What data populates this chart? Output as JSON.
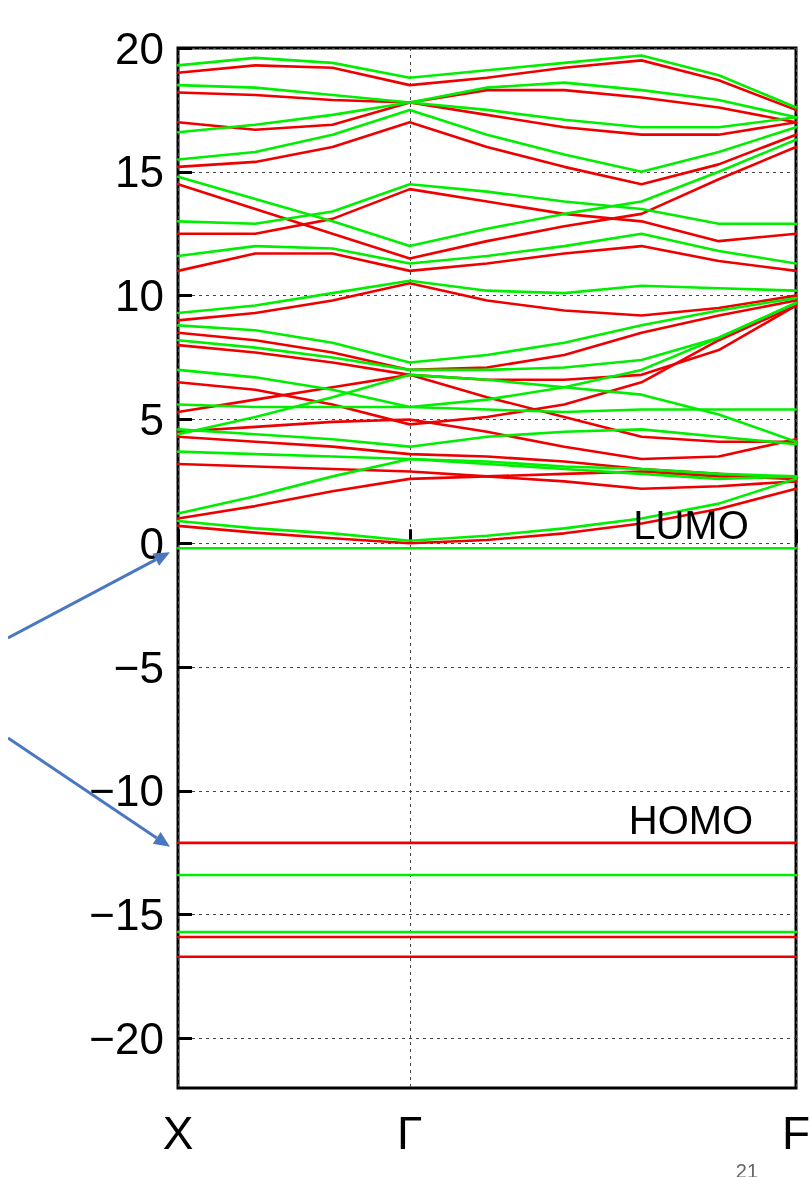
{
  "chart_data": {
    "type": "line",
    "marker": "none",
    "line_style": "solid",
    "grid": true,
    "categories": [
      "X",
      null,
      null,
      "Γ",
      null,
      null,
      null,
      null,
      "F"
    ],
    "ylim": [
      -22,
      20
    ],
    "yticks": [
      -20,
      -15,
      -10,
      -5,
      0,
      5,
      10,
      15,
      20
    ],
    "annotations": [
      {
        "text": "LUMO",
        "y": -0.2
      },
      {
        "text": "HOMO",
        "y": -12.1
      },
      "21"
    ],
    "series": [
      {
        "color": "#ee0000",
        "values": [
          0.7,
          0.43,
          0.2,
          0.0,
          0.13,
          0.4,
          0.8,
          1.38,
          2.2
        ]
      },
      {
        "color": "#ee0000",
        "values": [
          1.0,
          1.5,
          2.1,
          2.6,
          2.7,
          2.8,
          2.9,
          2.7,
          2.6
        ]
      },
      {
        "color": "#ee0000",
        "values": [
          3.2,
          3.1,
          3.0,
          2.9,
          2.7,
          2.5,
          2.2,
          2.3,
          2.5
        ]
      },
      {
        "color": "#ee0000",
        "values": [
          4.3,
          4.1,
          3.9,
          3.6,
          3.5,
          3.3,
          3.0,
          2.8,
          2.6
        ]
      },
      {
        "color": "#ee0000",
        "values": [
          4.5,
          4.7,
          4.9,
          5.0,
          4.5,
          3.9,
          3.4,
          3.5,
          4.2
        ]
      },
      {
        "color": "#ee0000",
        "values": [
          5.3,
          5.8,
          6.3,
          6.8,
          5.9,
          5.1,
          4.3,
          4.1,
          4.1
        ]
      },
      {
        "color": "#ee0000",
        "values": [
          6.5,
          6.2,
          5.6,
          4.8,
          5.1,
          5.6,
          6.5,
          8.2,
          9.6
        ]
      },
      {
        "color": "#ee0000",
        "values": [
          8.0,
          7.7,
          7.3,
          6.8,
          6.6,
          6.6,
          6.8,
          7.8,
          9.6
        ]
      },
      {
        "color": "#ee0000",
        "values": [
          8.5,
          8.2,
          7.7,
          7.0,
          7.1,
          7.6,
          8.5,
          9.2,
          9.8
        ]
      },
      {
        "color": "#ee0000",
        "values": [
          9.0,
          9.3,
          9.8,
          10.5,
          9.8,
          9.4,
          9.2,
          9.5,
          10.0
        ]
      },
      {
        "color": "#ee0000",
        "values": [
          11.0,
          11.7,
          11.7,
          11.0,
          11.3,
          11.7,
          12.0,
          11.4,
          11.0
        ]
      },
      {
        "color": "#ee0000",
        "values": [
          12.5,
          12.5,
          13.1,
          14.3,
          13.8,
          13.3,
          13.0,
          12.2,
          12.5
        ]
      },
      {
        "color": "#ee0000",
        "values": [
          14.5,
          13.5,
          12.5,
          11.5,
          12.2,
          12.8,
          13.3,
          14.7,
          16.0
        ]
      },
      {
        "color": "#ee0000",
        "values": [
          15.2,
          15.4,
          16.0,
          17.0,
          16.0,
          15.2,
          14.5,
          15.3,
          16.5
        ]
      },
      {
        "color": "#ee0000",
        "values": [
          17.0,
          16.7,
          16.9,
          17.8,
          17.3,
          16.8,
          16.5,
          16.5,
          17.0
        ]
      },
      {
        "color": "#ee0000",
        "values": [
          18.2,
          18.1,
          17.9,
          17.8,
          18.3,
          18.3,
          18.0,
          17.6,
          17.0
        ]
      },
      {
        "color": "#ee0000",
        "values": [
          19.0,
          19.3,
          19.2,
          18.5,
          18.8,
          19.2,
          19.5,
          18.7,
          17.5
        ]
      },
      {
        "color": "#ee0000",
        "values": [
          -12.1,
          -12.1,
          -12.1,
          -12.1,
          -12.1,
          -12.1,
          -12.1,
          -12.1,
          -12.1
        ]
      },
      {
        "color": "#ee0000",
        "values": [
          -15.9,
          -15.9,
          -15.9,
          -15.9,
          -15.9,
          -15.9,
          -15.9,
          -15.9,
          -15.9
        ]
      },
      {
        "color": "#ee0000",
        "values": [
          -16.7,
          -16.7,
          -16.7,
          -16.7,
          -16.7,
          -16.7,
          -16.7,
          -16.7,
          -16.7
        ]
      },
      {
        "color": "#00ee00",
        "values": [
          0.9,
          0.6,
          0.4,
          0.1,
          0.3,
          0.6,
          1.0,
          1.6,
          2.6
        ]
      },
      {
        "color": "#00ee00",
        "values": [
          1.2,
          1.9,
          2.7,
          3.4,
          3.3,
          3.1,
          3.0,
          2.8,
          2.7
        ]
      },
      {
        "color": "#00ee00",
        "values": [
          3.7,
          3.6,
          3.5,
          3.4,
          3.2,
          3.0,
          2.8,
          2.6,
          2.7
        ]
      },
      {
        "color": "#00ee00",
        "values": [
          4.6,
          4.4,
          4.2,
          3.9,
          4.3,
          4.5,
          4.6,
          4.3,
          4.0
        ]
      },
      {
        "color": "#00ee00",
        "values": [
          5.6,
          5.5,
          5.5,
          5.5,
          5.4,
          5.3,
          5.4,
          5.4,
          5.4
        ]
      },
      {
        "color": "#00ee00",
        "values": [
          4.4,
          5.1,
          5.9,
          6.8,
          6.6,
          6.3,
          6.0,
          5.2,
          4.1
        ]
      },
      {
        "color": "#00ee00",
        "values": [
          7.0,
          6.7,
          6.2,
          5.5,
          5.8,
          6.3,
          7.0,
          8.3,
          9.7
        ]
      },
      {
        "color": "#00ee00",
        "values": [
          8.2,
          7.9,
          7.5,
          7.0,
          7.0,
          7.1,
          7.4,
          8.3,
          9.7
        ]
      },
      {
        "color": "#00ee00",
        "values": [
          8.8,
          8.6,
          8.1,
          7.3,
          7.6,
          8.1,
          8.8,
          9.4,
          9.9
        ]
      },
      {
        "color": "#00ee00",
        "values": [
          9.3,
          9.6,
          10.1,
          10.6,
          10.2,
          10.1,
          10.4,
          10.3,
          10.2
        ]
      },
      {
        "color": "#00ee00",
        "values": [
          11.6,
          12.0,
          11.9,
          11.3,
          11.6,
          12.0,
          12.5,
          11.8,
          11.3
        ]
      },
      {
        "color": "#00ee00",
        "values": [
          13.0,
          12.9,
          13.4,
          14.5,
          14.2,
          13.8,
          13.5,
          12.9,
          12.9
        ]
      },
      {
        "color": "#00ee00",
        "values": [
          14.8,
          13.9,
          13.0,
          12.0,
          12.7,
          13.3,
          13.8,
          15.0,
          16.3
        ]
      },
      {
        "color": "#00ee00",
        "values": [
          15.5,
          15.8,
          16.5,
          17.5,
          16.5,
          15.7,
          15.0,
          15.8,
          16.8
        ]
      },
      {
        "color": "#00ee00",
        "values": [
          16.6,
          16.9,
          17.3,
          17.8,
          17.5,
          17.1,
          16.8,
          16.8,
          17.2
        ]
      },
      {
        "color": "#00ee00",
        "values": [
          18.5,
          18.4,
          18.1,
          17.8,
          18.4,
          18.6,
          18.3,
          17.9,
          17.2
        ]
      },
      {
        "color": "#00ee00",
        "values": [
          19.3,
          19.6,
          19.4,
          18.8,
          19.1,
          19.4,
          19.7,
          18.9,
          17.6
        ]
      },
      {
        "color": "#00ee00",
        "values": [
          -0.2,
          -0.2,
          -0.2,
          -0.2,
          -0.2,
          -0.2,
          -0.2,
          -0.2,
          -0.2
        ]
      },
      {
        "color": "#00ee00",
        "values": [
          -13.4,
          -13.4,
          -13.4,
          -13.4,
          -13.4,
          -13.4,
          -13.4,
          -13.4,
          -13.4
        ]
      },
      {
        "color": "#00ee00",
        "values": [
          -15.7,
          -15.7,
          -15.7,
          -15.7,
          -15.7,
          -15.7,
          -15.7,
          -15.7,
          -15.7
        ]
      }
    ]
  }
}
